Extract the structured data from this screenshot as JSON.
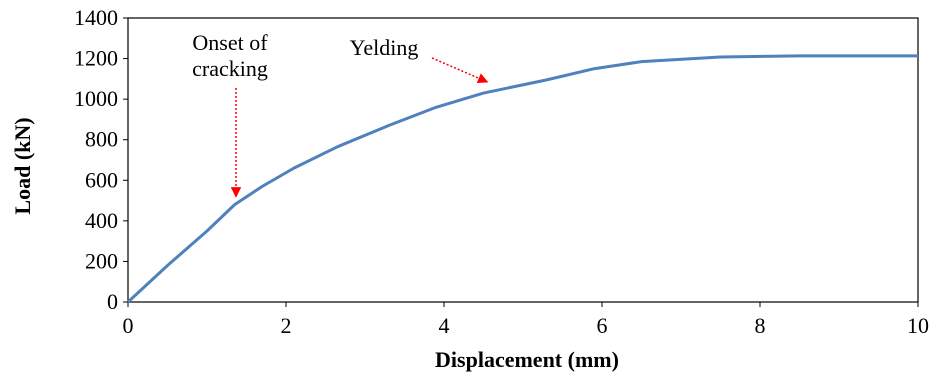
{
  "chart_data": {
    "type": "line",
    "xlabel": "Displacement (mm)",
    "ylabel": "Load (kN)",
    "xlim": [
      0,
      10
    ],
    "ylim": [
      0,
      1400
    ],
    "xticks": [
      0,
      2,
      4,
      6,
      8,
      10
    ],
    "yticks": [
      0,
      200,
      400,
      600,
      800,
      1000,
      1200,
      1400
    ],
    "grid": false,
    "legend": "none",
    "series": [
      {
        "color": "#4F81BD",
        "x": [
          0,
          0.5,
          1.0,
          1.35,
          1.7,
          2.1,
          2.65,
          3.3,
          3.9,
          4.5,
          5.3,
          5.9,
          6.5,
          7.5,
          8.5,
          10
        ],
        "y": [
          0,
          180,
          350,
          480,
          570,
          660,
          765,
          870,
          960,
          1030,
          1095,
          1150,
          1185,
          1208,
          1213,
          1213
        ]
      }
    ],
    "annotations": [
      {
        "lines": [
          "Onset of",
          "cracking"
        ],
        "point": [
          1.35,
          480
        ],
        "arrow_color": "#FF0000"
      },
      {
        "lines": [
          "Yelding"
        ],
        "point": [
          4.6,
          1055
        ],
        "arrow_color": "#FF0000"
      }
    ]
  }
}
